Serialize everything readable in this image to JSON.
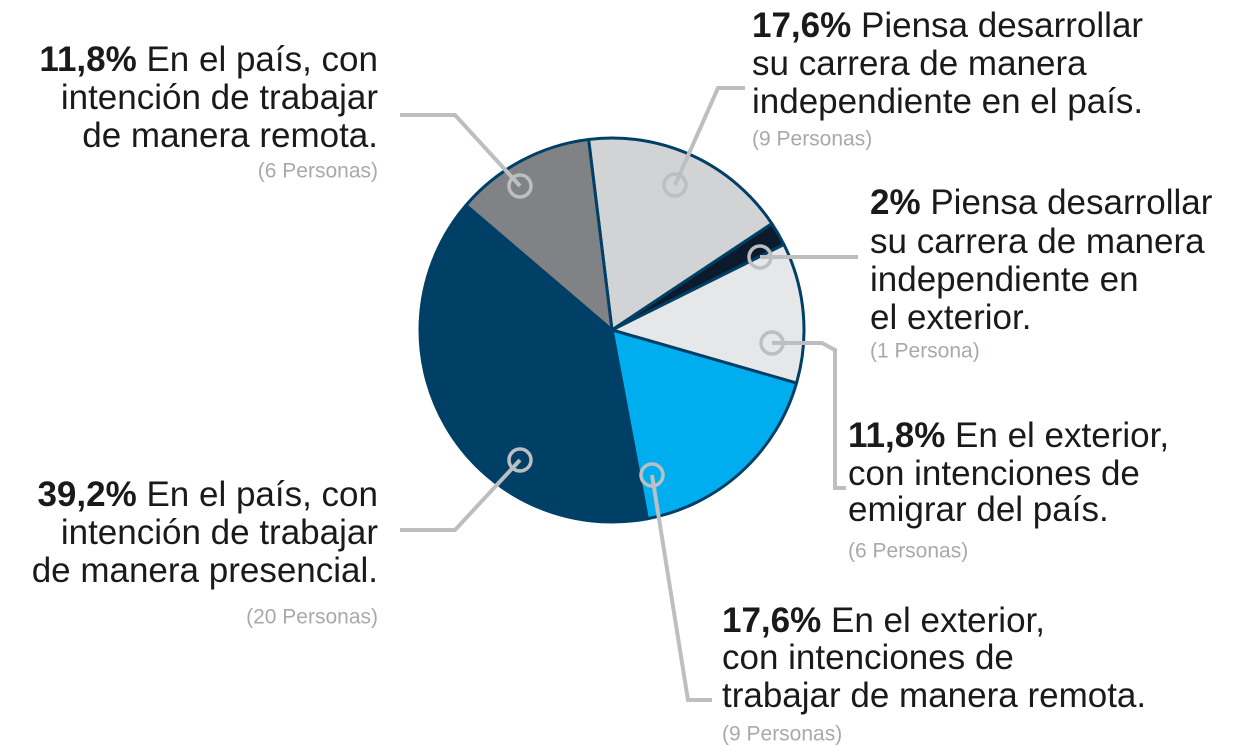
{
  "chart_data": {
    "type": "pie",
    "categories": [
      [
        "Piensa desarrollar",
        "su carrera de manera",
        "independiente en el país."
      ],
      [
        "Piensa desarrollar",
        "su carrera de manera",
        "independiente en",
        "el exterior."
      ],
      [
        "En el exterior,",
        "con intenciones de",
        "emigrar del país."
      ],
      [
        "En el exterior,",
        "con intenciones de",
        "trabajar de manera remota."
      ],
      [
        "En el país, con",
        "intención de trabajar",
        "de manera presencial."
      ],
      [
        "En el país, con",
        "intención de trabajar",
        "de manera remota."
      ]
    ],
    "values": [
      17.6,
      2,
      11.8,
      17.6,
      39.2,
      11.8
    ],
    "value_labels": [
      "17,6%",
      "2%",
      "11,8%",
      "17,6%",
      "39,2%",
      "11,8%"
    ],
    "notes": [
      "(9 Personas)",
      "(1 Persona)",
      "(6 Personas)",
      "(9 Personas)",
      "(20 Personas)",
      "(6 Personas)"
    ],
    "colors": [
      "#d1d3d4",
      "#0b1b2b",
      "#e6e7e8",
      "#00aeef",
      "#003f66",
      "#808285"
    ]
  }
}
